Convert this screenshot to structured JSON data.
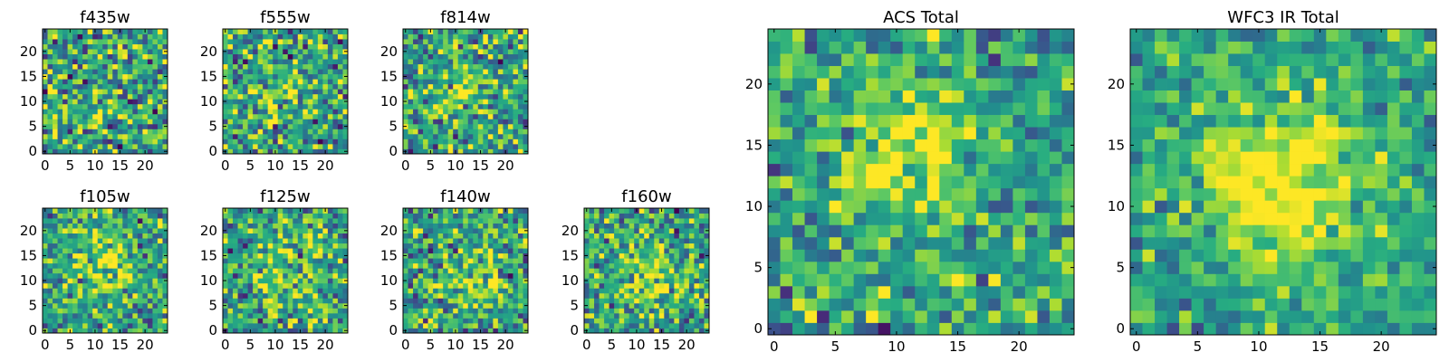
{
  "colormap": "viridis",
  "colors": {
    "frame": "#000000",
    "background": "#ffffff"
  },
  "chart_data": [
    {
      "type": "heatmap",
      "title": "f435w",
      "grid": [
        25,
        25
      ],
      "xlim": [
        0,
        24
      ],
      "ylim": [
        0,
        24
      ],
      "x_ticks": [
        0,
        5,
        10,
        15,
        20
      ],
      "y_ticks": [
        0,
        5,
        10,
        15,
        20
      ],
      "peak": [
        12,
        12
      ],
      "signal": 0.05,
      "sigma": 4,
      "noise": 0.26,
      "seed": 11
    },
    {
      "type": "heatmap",
      "title": "f555w",
      "grid": [
        25,
        25
      ],
      "xlim": [
        0,
        24
      ],
      "ylim": [
        0,
        24
      ],
      "x_ticks": [
        0,
        5,
        10,
        15,
        20
      ],
      "y_ticks": [
        0,
        5,
        10,
        15,
        20
      ],
      "peak": [
        11,
        12
      ],
      "signal": 0.15,
      "sigma": 4,
      "noise": 0.24,
      "seed": 23
    },
    {
      "type": "heatmap",
      "title": "f814w",
      "grid": [
        25,
        25
      ],
      "xlim": [
        0,
        24
      ],
      "ylim": [
        0,
        24
      ],
      "x_ticks": [
        0,
        5,
        10,
        15,
        20
      ],
      "y_ticks": [
        0,
        5,
        10,
        15,
        20
      ],
      "peak": [
        11,
        13
      ],
      "signal": 0.25,
      "sigma": 3.5,
      "noise": 0.23,
      "seed": 37
    },
    {
      "type": "heatmap",
      "title": "f105w",
      "grid": [
        25,
        25
      ],
      "xlim": [
        0,
        24
      ],
      "ylim": [
        0,
        24
      ],
      "x_ticks": [
        0,
        5,
        10,
        15,
        20
      ],
      "y_ticks": [
        0,
        5,
        10,
        15,
        20
      ],
      "peak": [
        12,
        13
      ],
      "signal": 0.3,
      "sigma": 4,
      "noise": 0.2,
      "seed": 41
    },
    {
      "type": "heatmap",
      "title": "f125w",
      "grid": [
        25,
        25
      ],
      "xlim": [
        0,
        24
      ],
      "ylim": [
        0,
        24
      ],
      "x_ticks": [
        0,
        5,
        10,
        15,
        20
      ],
      "y_ticks": [
        0,
        5,
        10,
        15,
        20
      ],
      "peak": [
        11,
        11
      ],
      "signal": 0.2,
      "sigma": 5,
      "noise": 0.22,
      "seed": 53
    },
    {
      "type": "heatmap",
      "title": "f140w",
      "grid": [
        25,
        25
      ],
      "xlim": [
        0,
        24
      ],
      "ylim": [
        0,
        24
      ],
      "x_ticks": [
        0,
        5,
        10,
        15,
        20
      ],
      "y_ticks": [
        0,
        5,
        10,
        15,
        20
      ],
      "peak": [
        13,
        11
      ],
      "signal": 0.22,
      "sigma": 5,
      "noise": 0.22,
      "seed": 67
    },
    {
      "type": "heatmap",
      "title": "f160w",
      "grid": [
        25,
        25
      ],
      "xlim": [
        0,
        24
      ],
      "ylim": [
        0,
        24
      ],
      "x_ticks": [
        0,
        5,
        10,
        15,
        20
      ],
      "y_ticks": [
        0,
        5,
        10,
        15,
        20
      ],
      "peak": [
        13,
        10
      ],
      "signal": 0.25,
      "sigma": 4.5,
      "noise": 0.22,
      "seed": 79
    },
    {
      "type": "heatmap",
      "title": "ACS Total",
      "grid": [
        25,
        25
      ],
      "xlim": [
        0,
        24
      ],
      "ylim": [
        0,
        24
      ],
      "x_ticks": [
        0,
        5,
        10,
        15,
        20
      ],
      "y_ticks": [
        0,
        5,
        10,
        15,
        20
      ],
      "peak": [
        11,
        14
      ],
      "signal": 0.35,
      "sigma": 3.5,
      "noise": 0.18,
      "seed": 97
    },
    {
      "type": "heatmap",
      "title": "WFC3 IR Total",
      "grid": [
        25,
        25
      ],
      "xlim": [
        0,
        24
      ],
      "ylim": [
        0,
        24
      ],
      "x_ticks": [
        0,
        5,
        10,
        15,
        20
      ],
      "y_ticks": [
        0,
        5,
        10,
        15,
        20
      ],
      "peak": [
        12,
        12
      ],
      "signal": 0.5,
      "sigma": 4.5,
      "noise": 0.14,
      "seed": 113
    }
  ]
}
